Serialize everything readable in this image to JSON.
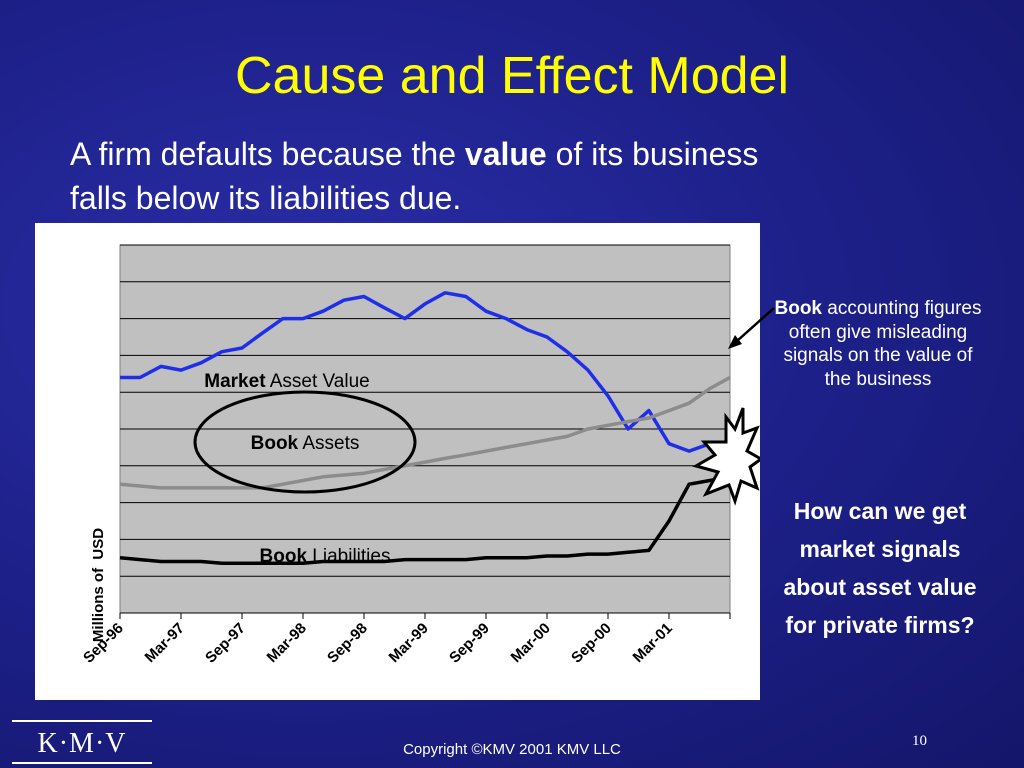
{
  "slide": {
    "title": "Cause and Effect Model",
    "subtitle_pre": "A firm defaults because the ",
    "subtitle_bold": "value",
    "subtitle_post": " of its business falls below its liabilities due.",
    "side_note_bold": "Book",
    "side_note_rest": " accounting figures often give misleading signals on the value of the business",
    "side_question": "How can we get market signals about asset value for private firms?",
    "logo_text": "K·M·V",
    "footer": "Copyright ©KMV 2001 KMV LLC",
    "page_number": "10"
  },
  "labels": {
    "market_bold": "Market",
    "market_rest": " Asset Value",
    "assets_bold": "Book",
    "assets_rest": " Assets",
    "liab_bold": "Book",
    "liab_rest": " Liabilities"
  },
  "colors": {
    "background": "#1c1f86",
    "title": "#ffff00",
    "market_line": "#1f2ee8",
    "book_assets_line": "#8c8c8c",
    "book_liabilities_line": "#000000",
    "plot_background": "#c0c0c0"
  },
  "chart_data": {
    "type": "line",
    "title": "",
    "xlabel": "",
    "ylabel": "Millions of  USD",
    "ylim": [
      0,
      10
    ],
    "y_ticks_labeled": false,
    "grid": true,
    "x_tick_labels": [
      "Sep-96",
      "Mar-97",
      "Sep-97",
      "Mar-98",
      "Sep-98",
      "Mar-99",
      "Sep-99",
      "Mar-00",
      "Sep-00",
      "Mar-01"
    ],
    "x": [
      0,
      0.33,
      0.67,
      1,
      1.33,
      1.67,
      2,
      2.33,
      2.67,
      3,
      3.33,
      3.67,
      4,
      4.33,
      4.67,
      5,
      5.33,
      5.67,
      6,
      6.33,
      6.67,
      7,
      7.33,
      7.67,
      8,
      8.33,
      8.67,
      9,
      9.33,
      9.67,
      10
    ],
    "series": [
      {
        "name": "Market Asset Value",
        "values": [
          6.4,
          6.4,
          6.7,
          6.6,
          6.8,
          7.1,
          7.2,
          7.6,
          8.0,
          8.0,
          8.2,
          8.5,
          8.6,
          8.3,
          8.0,
          8.4,
          8.7,
          8.6,
          8.2,
          8.0,
          7.7,
          7.5,
          7.1,
          6.6,
          5.9,
          5.0,
          5.5,
          4.6,
          4.4,
          4.6,
          4.6
        ]
      },
      {
        "name": "Book Assets",
        "values": [
          3.5,
          3.45,
          3.4,
          3.4,
          3.4,
          3.4,
          3.4,
          3.4,
          3.5,
          3.6,
          3.7,
          3.75,
          3.8,
          3.9,
          4.0,
          4.1,
          4.2,
          4.3,
          4.4,
          4.5,
          4.6,
          4.7,
          4.8,
          5.0,
          5.1,
          5.2,
          5.3,
          5.5,
          5.7,
          6.1,
          6.4
        ]
      },
      {
        "name": "Book Liabilities",
        "values": [
          1.5,
          1.45,
          1.4,
          1.4,
          1.4,
          1.35,
          1.35,
          1.35,
          1.35,
          1.35,
          1.4,
          1.4,
          1.4,
          1.4,
          1.45,
          1.45,
          1.45,
          1.45,
          1.5,
          1.5,
          1.5,
          1.55,
          1.55,
          1.6,
          1.6,
          1.65,
          1.7,
          2.5,
          3.5,
          3.6,
          3.7
        ]
      }
    ]
  }
}
